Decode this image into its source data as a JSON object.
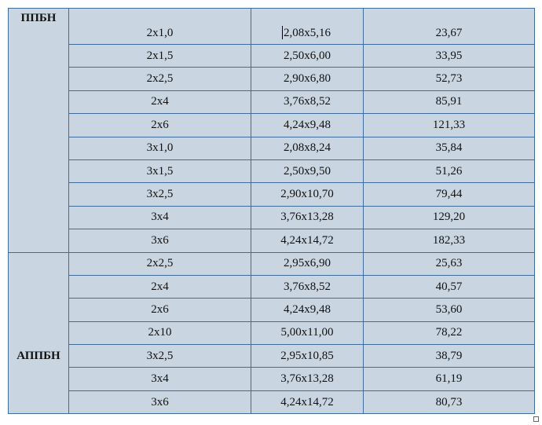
{
  "table": {
    "groups": [
      {
        "label": "ППБН",
        "rows": [
          {
            "size": "2x1,0",
            "dims": "2,08x5,16",
            "value": "23,67"
          },
          {
            "size": "2x1,5",
            "dims": "2,50x6,00",
            "value": "33,95"
          },
          {
            "size": "2x2,5",
            "dims": "2,90x6,80",
            "value": "52,73"
          },
          {
            "size": "2x4",
            "dims": "3,76x8,52",
            "value": "85,91"
          },
          {
            "size": "2x6",
            "dims": "4,24x9,48",
            "value": "121,33"
          },
          {
            "size": "3x1,0",
            "dims": "2,08x8,24",
            "value": "35,84"
          },
          {
            "size": "3x1,5",
            "dims": "2,50x9,50",
            "value": "51,26"
          },
          {
            "size": "3x2,5",
            "dims": "2,90x10,70",
            "value": "79,44"
          },
          {
            "size": "3x4",
            "dims": "3,76x13,28",
            "value": "129,20"
          },
          {
            "size": "3x6",
            "dims": "4,24x14,72",
            "value": "182,33"
          }
        ]
      },
      {
        "label": "АППБН",
        "rows": [
          {
            "size": "2x2,5",
            "dims": "2,95x6,90",
            "value": "25,63"
          },
          {
            "size": "2x4",
            "dims": "3,76x8,52",
            "value": "40,57"
          },
          {
            "size": "2x6",
            "dims": "4,24x9,48",
            "value": "53,60"
          },
          {
            "size": "2x10",
            "dims": "5,00x11,00",
            "value": "78,22"
          },
          {
            "size": "3x2,5",
            "dims": "2,95x10,85",
            "value": "38,79"
          },
          {
            "size": "3x4",
            "dims": "3,76x13,28",
            "value": "61,19"
          },
          {
            "size": "3x6",
            "dims": "4,24x14,72",
            "value": "80,73"
          }
        ]
      }
    ]
  }
}
